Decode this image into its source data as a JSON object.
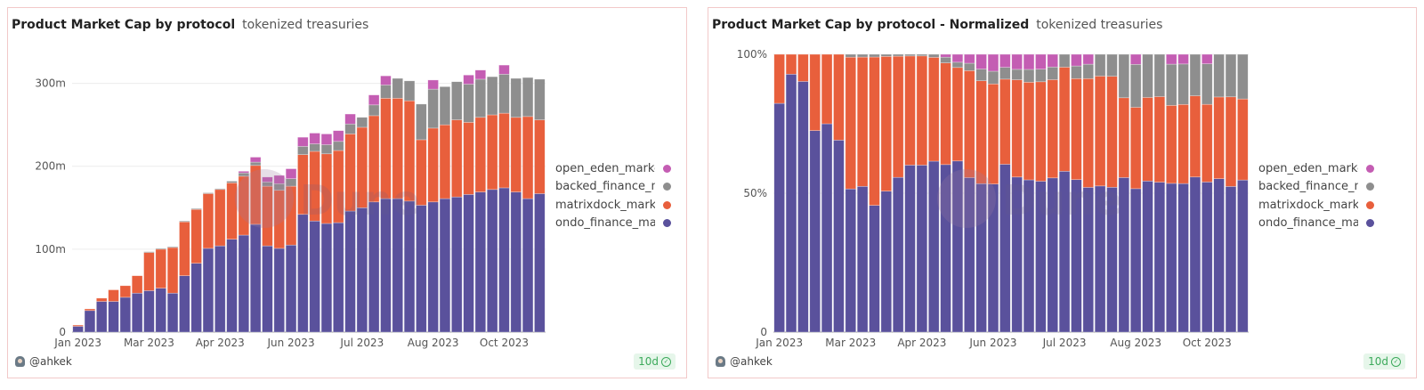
{
  "colors": {
    "ondo": "#5a519c",
    "matrixdock": "#e85f3c",
    "backed": "#8e8e8e",
    "open_eden": "#c45db3",
    "grid": "#ececec",
    "axis": "#999999"
  },
  "watermark": "Dune",
  "legend": [
    {
      "label": "open_eden_marke",
      "key": "open_eden"
    },
    {
      "label": "backed_finance_m",
      "key": "backed"
    },
    {
      "label": "matrixdock_marke",
      "key": "matrixdock"
    },
    {
      "label": "ondo_finance_mar",
      "key": "ondo"
    }
  ],
  "footer": {
    "author": "@ahkek",
    "age": "10d"
  },
  "chart_data": [
    {
      "type": "bar",
      "stacked": true,
      "normalized": false,
      "title": "Product Market Cap by protocol",
      "subtitle": "tokenized treasuries",
      "xlabel": "",
      "ylabel": "",
      "ylim": [
        0,
        335
      ],
      "unit": "m",
      "yticks": [
        {
          "v": 0,
          "label": "0"
        },
        {
          "v": 100,
          "label": "100m"
        },
        {
          "v": 200,
          "label": "200m"
        },
        {
          "v": 300,
          "label": "300m"
        }
      ],
      "xticks": [
        {
          "i": 0,
          "label": "Jan 2023"
        },
        {
          "i": 6,
          "label": "Mar 2023"
        },
        {
          "i": 12,
          "label": "Apr 2023"
        },
        {
          "i": 18,
          "label": "Jun 2023"
        },
        {
          "i": 24,
          "label": "Jul 2023"
        },
        {
          "i": 30,
          "label": "Aug 2023"
        },
        {
          "i": 36,
          "label": "Oct 2023"
        }
      ],
      "series": [
        {
          "name": "ondo_finance_market_cap",
          "key": "ondo",
          "values": [
            7,
            26,
            37,
            37,
            42,
            47,
            50,
            53,
            47,
            68,
            83,
            101,
            104,
            112,
            117,
            130,
            104,
            101,
            105,
            142,
            134,
            131,
            132,
            146,
            150,
            157,
            161,
            161,
            158,
            153,
            157,
            161,
            163,
            166,
            169,
            172,
            174,
            169,
            161,
            167
          ]
        },
        {
          "name": "matrixdock_market_cap",
          "key": "matrixdock",
          "values": [
            1.5,
            2,
            4,
            14,
            14,
            21,
            46,
            47,
            55,
            65,
            65,
            66,
            68,
            68,
            71,
            71,
            72,
            70,
            71,
            72,
            84,
            84,
            87,
            93,
            97,
            104,
            121,
            121,
            121,
            79,
            89,
            89,
            93,
            87,
            90,
            90,
            90,
            90,
            99,
            89
          ]
        },
        {
          "name": "backed_finance_market_cap",
          "key": "backed",
          "values": [
            0,
            0,
            0,
            0,
            0,
            0,
            1,
            1,
            1,
            1,
            1,
            1,
            1,
            2,
            4,
            4,
            5,
            8,
            9,
            10,
            9,
            11,
            11,
            12,
            12,
            13,
            16,
            24,
            24,
            43,
            47,
            46,
            46,
            46,
            46,
            46,
            47,
            47,
            47,
            49
          ]
        },
        {
          "name": "open_eden_market_cap",
          "key": "open_eden",
          "values": [
            0,
            0,
            0,
            0,
            0,
            0,
            0,
            0,
            0,
            0,
            0,
            0,
            0,
            0,
            2,
            6,
            6,
            10,
            12,
            11,
            13,
            13,
            13,
            12,
            0,
            12,
            11,
            0,
            0,
            0,
            11,
            0,
            0,
            11,
            11,
            0,
            11,
            0,
            0,
            0
          ]
        }
      ]
    },
    {
      "type": "bar",
      "stacked": true,
      "normalized": true,
      "title": "Product Market Cap by protocol - Normalized",
      "subtitle": "tokenized treasuries",
      "xlabel": "",
      "ylabel": "",
      "ylim": [
        0,
        100
      ],
      "unit": "%",
      "yticks": [
        {
          "v": 0,
          "label": "0"
        },
        {
          "v": 50,
          "label": "50%"
        },
        {
          "v": 100,
          "label": "100%"
        }
      ],
      "xticks": [
        {
          "i": 0,
          "label": "Jan 2023"
        },
        {
          "i": 6,
          "label": "Mar 2023"
        },
        {
          "i": 12,
          "label": "Apr 2023"
        },
        {
          "i": 18,
          "label": "Jun 2023"
        },
        {
          "i": 24,
          "label": "Jul 2023"
        },
        {
          "i": 30,
          "label": "Aug 2023"
        },
        {
          "i": 36,
          "label": "Oct 2023"
        }
      ],
      "series_source": "same series as chart 1, shown as share of weekly total"
    }
  ]
}
